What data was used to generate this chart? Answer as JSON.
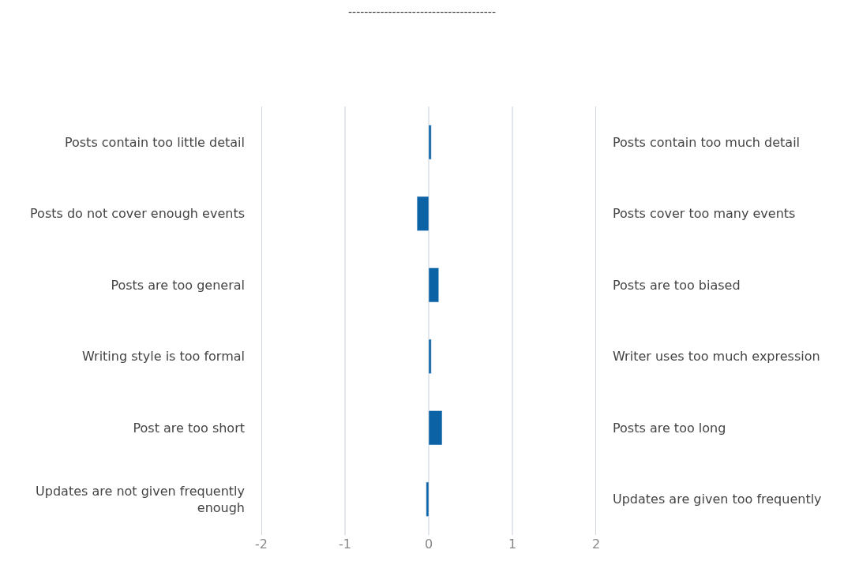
{
  "chart_data": {
    "type": "bar",
    "orientation": "horizontal",
    "title": "-------------------------------------",
    "categories": [
      "Posts contain too little detail",
      "Posts do not cover enough events",
      "Posts are too general",
      "Writing style is too formal",
      "Post are too short",
      "Updates are not given frequently enough"
    ],
    "y2_categories": [
      "Posts contain too much detail",
      "Posts cover too many events",
      "Posts are too biased",
      "Writer uses too much expression",
      "Posts are too long",
      "Updates are given too frequently"
    ],
    "values": [
      0.03,
      -0.14,
      0.12,
      0.03,
      0.16,
      -0.03
    ],
    "color": "#0b62a4",
    "xlim": [
      -2,
      2
    ],
    "xticks": [
      -2,
      -1,
      0,
      1,
      2
    ],
    "grid": "x"
  }
}
